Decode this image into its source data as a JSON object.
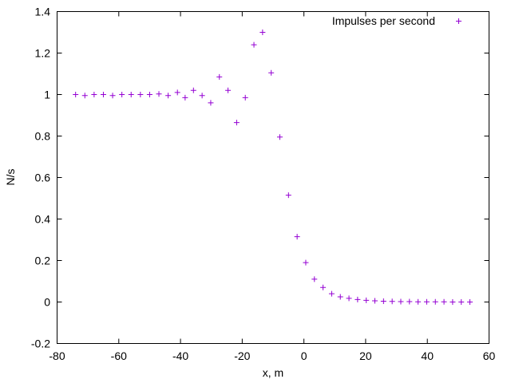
{
  "chart_data": {
    "type": "scatter",
    "xlabel": "x, m",
    "ylabel": "N/s",
    "xlim": [
      -80,
      60
    ],
    "ylim": [
      -0.2,
      1.4
    ],
    "x_ticks": [
      "-80",
      "-60",
      "-40",
      "-20",
      "0",
      "20",
      "40",
      "60"
    ],
    "y_ticks": [
      "-0.2",
      "0",
      "0.2",
      "0.4",
      "0.6",
      "0.8",
      "1",
      "1.2",
      "1.4"
    ],
    "grid": false,
    "legend": "top-right",
    "series": [
      {
        "name": "Impulses per second",
        "color": "#9400d3",
        "marker": "plus",
        "x": [
          -74,
          -71,
          -68,
          -65,
          -62,
          -59,
          -56,
          -53,
          -50,
          -47,
          -44,
          -41,
          -38.5,
          -35.8,
          -33,
          -30.2,
          -27.4,
          -24.6,
          -21.8,
          -19,
          -16.2,
          -13.4,
          -10.6,
          -7.8,
          -5,
          -2.2,
          0.6,
          3.4,
          6.2,
          9,
          11.8,
          14.6,
          17.4,
          20.2,
          23,
          25.8,
          28.6,
          31.4,
          34.2,
          37,
          39.8,
          42.6,
          45.4,
          48.2,
          51,
          53.8
        ],
        "y": [
          1.0,
          0.995,
          1.0,
          1.0,
          0.995,
          1.0,
          1.0,
          1.0,
          1.0,
          1.003,
          0.995,
          1.01,
          0.985,
          1.02,
          0.995,
          0.96,
          1.085,
          1.02,
          0.865,
          0.985,
          1.24,
          1.3,
          1.105,
          0.795,
          0.515,
          0.315,
          0.19,
          0.11,
          0.07,
          0.04,
          0.025,
          0.018,
          0.012,
          0.008,
          0.006,
          0.004,
          0.003,
          0.002,
          0.002,
          0.001,
          0.001,
          0.001,
          0.001,
          0.0,
          0.0,
          0.0
        ]
      }
    ]
  }
}
